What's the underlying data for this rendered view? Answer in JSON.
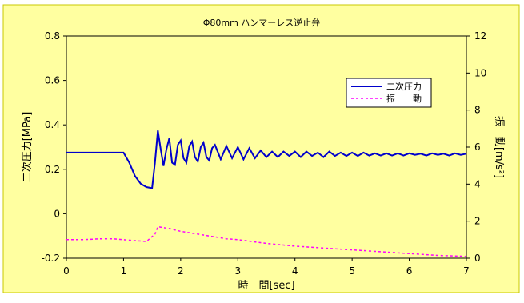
{
  "chart_data": {
    "type": "line",
    "title": "Φ80mm ハンマーレス逆止弁",
    "xlabel": "時　間[sec]",
    "ylabel_left": "二次圧力[MPa]",
    "ylabel_right": "振　動[m/s²]",
    "xlim": [
      0,
      7
    ],
    "ylim_left": [
      -0.2,
      0.8
    ],
    "ylim_right": [
      0,
      12
    ],
    "x_ticks": [
      "0",
      "1",
      "2",
      "3",
      "4",
      "5",
      "6",
      "7"
    ],
    "y_ticks_left": [
      "-0.2",
      "0",
      "0.2",
      "0.4",
      "0.6",
      "0.8"
    ],
    "y_ticks_right": [
      "0",
      "2",
      "4",
      "6",
      "8",
      "10",
      "12"
    ],
    "grid": false,
    "legend_position": "upper-right",
    "colors": {
      "background": "#ffffa0",
      "pressure": "#0000cc",
      "vibration": "#ff00ff"
    },
    "series": [
      {
        "name": "二次圧力",
        "axis": "left",
        "style": "solid",
        "x": [
          0,
          1.0,
          1.1,
          1.2,
          1.3,
          1.4,
          1.5,
          1.55,
          1.6,
          1.65,
          1.7,
          1.75,
          1.8,
          1.85,
          1.9,
          1.95,
          2.0,
          2.05,
          2.1,
          2.15,
          2.2,
          2.25,
          2.3,
          2.35,
          2.4,
          2.45,
          2.5,
          2.55,
          2.6,
          2.7,
          2.8,
          2.9,
          3.0,
          3.1,
          3.2,
          3.3,
          3.4,
          3.5,
          3.6,
          3.7,
          3.8,
          3.9,
          4.0,
          4.1,
          4.2,
          4.3,
          4.4,
          4.5,
          4.6,
          4.7,
          4.8,
          4.9,
          5.0,
          5.1,
          5.2,
          5.3,
          5.4,
          5.5,
          5.6,
          5.7,
          5.8,
          5.9,
          6.0,
          6.1,
          6.2,
          6.3,
          6.4,
          6.5,
          6.6,
          6.7,
          6.8,
          6.9,
          7.0
        ],
        "values": [
          0.275,
          0.275,
          0.23,
          0.17,
          0.135,
          0.12,
          0.115,
          0.23,
          0.375,
          0.29,
          0.215,
          0.29,
          0.34,
          0.23,
          0.22,
          0.31,
          0.33,
          0.25,
          0.23,
          0.305,
          0.325,
          0.255,
          0.235,
          0.3,
          0.32,
          0.255,
          0.24,
          0.295,
          0.31,
          0.245,
          0.305,
          0.25,
          0.3,
          0.245,
          0.295,
          0.25,
          0.285,
          0.255,
          0.28,
          0.255,
          0.28,
          0.26,
          0.28,
          0.255,
          0.28,
          0.26,
          0.275,
          0.255,
          0.28,
          0.26,
          0.275,
          0.26,
          0.275,
          0.26,
          0.275,
          0.262,
          0.272,
          0.262,
          0.272,
          0.262,
          0.272,
          0.262,
          0.272,
          0.265,
          0.27,
          0.262,
          0.272,
          0.265,
          0.27,
          0.262,
          0.272,
          0.265,
          0.27
        ]
      },
      {
        "name": "振　　動",
        "axis": "right",
        "style": "dashed",
        "x": [
          0,
          0.3,
          0.6,
          0.8,
          1.0,
          1.2,
          1.4,
          1.55,
          1.6,
          1.8,
          2.0,
          2.2,
          2.5,
          2.8,
          3.0,
          3.5,
          4.0,
          4.5,
          5.0,
          5.5,
          6.0,
          6.5,
          7.0
        ],
        "values": [
          1.0,
          1.0,
          1.05,
          1.05,
          1.0,
          0.95,
          0.9,
          1.3,
          1.7,
          1.6,
          1.45,
          1.35,
          1.2,
          1.05,
          1.0,
          0.8,
          0.65,
          0.55,
          0.45,
          0.35,
          0.25,
          0.15,
          0.1
        ]
      }
    ]
  }
}
